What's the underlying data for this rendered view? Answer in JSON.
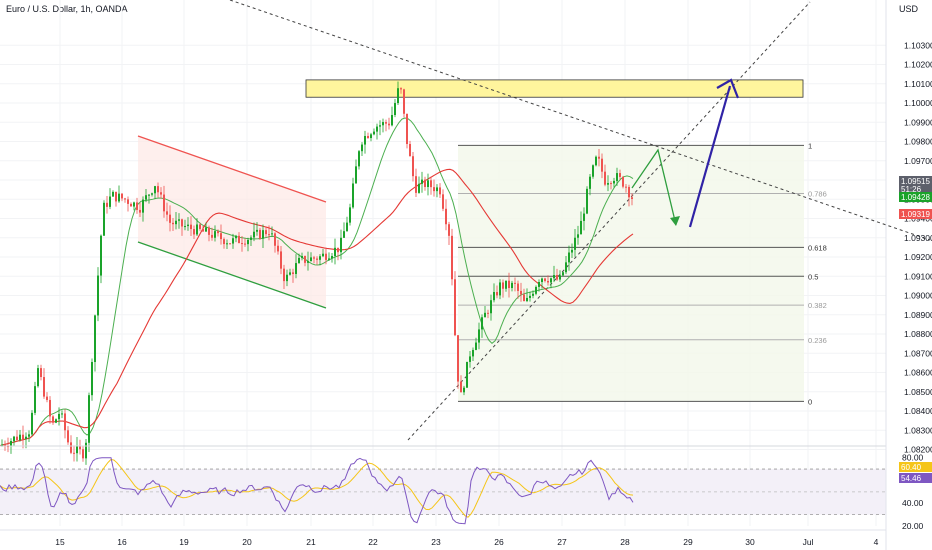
{
  "header": {
    "title": "Euro / U.S. Dollar, 1h, OANDA",
    "currency": "USD"
  },
  "colors": {
    "up": "#26a69a",
    "up_bright": "#1aa32a",
    "down": "#ef5350",
    "ma_fast": "#4caf50",
    "ma_slow": "#e53935",
    "rsi": "#7e57c2",
    "rsi_ma": "#f5c518",
    "fib_line": "#555555",
    "zone": "#fff59d",
    "arrow_blue": "#3023a6",
    "arrow_green": "#2e9e3e"
  },
  "chart_data": {
    "type": "candlestick",
    "symbol": "EURUSD",
    "timeframe": "1h",
    "x_ticks": [
      "15",
      "16",
      "19",
      "20",
      "21",
      "22",
      "23",
      "26",
      "27",
      "28",
      "29",
      "30",
      "Jul",
      "4"
    ],
    "y_ticks": [
      "1.10300",
      "1.10200",
      "1.10100",
      "1.10000",
      "1.09900",
      "1.09800",
      "1.09700",
      "1.09600",
      "1.09500",
      "1.09400",
      "1.09300",
      "1.09200",
      "1.09100",
      "1.09000",
      "1.08900",
      "1.08800",
      "1.08700",
      "1.08600",
      "1.08500",
      "1.08400",
      "1.08300",
      "1.08200"
    ],
    "ylim": [
      1.0818,
      1.1045
    ],
    "price_tags": [
      {
        "label": "1.09515",
        "sub": "51:26",
        "value": 1.09515,
        "color": "#5d606b"
      },
      {
        "label": "1.09428",
        "value": 1.09428,
        "color": "#1aa32a"
      },
      {
        "label": "1.09319",
        "value": 1.09319,
        "color": "#ef5350"
      }
    ],
    "fib_levels": [
      {
        "label": "1",
        "value": 1.0978
      },
      {
        "label": "0.786",
        "value": 1.0953
      },
      {
        "label": "0.618",
        "value": 1.0925
      },
      {
        "label": "0.5",
        "value": 1.091
      },
      {
        "label": "0.382",
        "value": 1.0895
      },
      {
        "label": "0.236",
        "value": 1.0877
      },
      {
        "label": "0",
        "value": 1.0845
      }
    ],
    "resistance_zone": [
      1.1003,
      1.1012
    ],
    "rsi": {
      "ticks": [
        "80.00",
        "40.00",
        "20.00"
      ],
      "tags": [
        {
          "label": "60.40",
          "color": "#f5c518"
        },
        {
          "label": "54.46",
          "color": "#7e57c2"
        }
      ]
    }
  }
}
